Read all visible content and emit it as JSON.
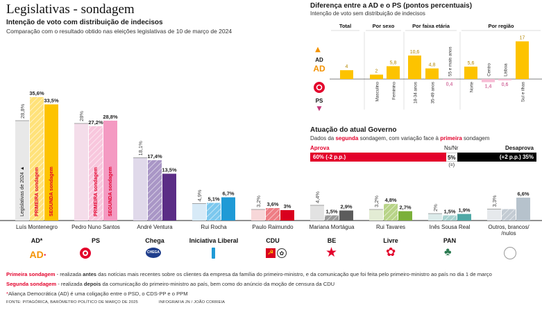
{
  "header": {
    "title": "Legislativas - sondagem",
    "subtitle": "Intenção de voto com distribuição de indecisos",
    "caption": "Comparação com o resultado obtido nas eleições legislativas de 10 de março de 2024"
  },
  "chart_data": [
    {
      "type": "bar",
      "title": "Intenção de voto com distribuição de indecisos",
      "series_names": [
        "Legislativas de 2024",
        "PRIMEIRA sondagem",
        "SEGUNDA sondagem"
      ],
      "categories": [
        "AD",
        "PS",
        "Chega",
        "Iniciativa Liberal",
        "CDU",
        "BE",
        "Livre",
        "PAN",
        "Outros"
      ],
      "series": [
        {
          "name": "Legislativas de 2024",
          "values": [
            28.8,
            28,
            18.1,
            4.9,
            3.2,
            4.4,
            3.2,
            2,
            3.3
          ],
          "labels": [
            "28,8%",
            "28%",
            "18,1%",
            "4,9%",
            "3,2%",
            "4,4%",
            "3,2%",
            "2%",
            "3,3%"
          ]
        },
        {
          "name": "PRIMEIRA sondagem",
          "values": [
            35.6,
            27.2,
            17.4,
            5.1,
            3.6,
            1.5,
            4.8,
            1.5,
            3.3
          ],
          "labels": [
            "35,6%",
            "27,2%",
            "17,4%",
            "5,1%",
            "3,6%",
            "1,5%",
            "4,8%",
            "1,5%",
            ""
          ]
        },
        {
          "name": "SEGUNDA sondagem",
          "values": [
            33.5,
            28.8,
            13.5,
            6.7,
            3,
            2.9,
            2.7,
            1.9,
            6.6
          ],
          "labels": [
            "33,5%",
            "28,8%",
            "13,5%",
            "6,7%",
            "3%",
            "2,9%",
            "2,7%",
            "1,9%",
            "6,6%"
          ]
        }
      ],
      "bar_labels_inside": {
        "ad_2024": "Legislativas de 2024 ▲",
        "ad_first": "PRIMEIRA sondagem",
        "ad_second": "SEGUNDA sondagem",
        "ps_first": "PRIMEIRA sondagem",
        "ps_second": "SEGUNDA sondagem",
        "ps_2024": "Legislativas de 2024"
      },
      "colors": [
        {
          "legislativas": "#e8e8e8",
          "first": "#ffe27a",
          "second": "#fdc300"
        },
        {
          "legislativas": "#f4ddea",
          "first": "#f8c7dd",
          "second": "#f49ac2"
        },
        {
          "legislativas": "#e0d9ea",
          "first": "#a996c6",
          "second": "#5b2d86"
        },
        {
          "legislativas": "#d7eaf7",
          "first": "#7cc8ee",
          "second": "#1f9ad6"
        },
        {
          "legislativas": "#f7d7d9",
          "first": "#ee7d84",
          "second": "#d9001e"
        },
        {
          "legislativas": "#e2e2e2",
          "first": "#9a9a9a",
          "second": "#5c5c5c"
        },
        {
          "legislativas": "#e3ecd4",
          "first": "#b8d488",
          "second": "#7bb03a"
        },
        {
          "legislativas": "#dcebea",
          "first": "#a8d2d0",
          "second": "#4fa8a5"
        },
        {
          "legislativas": "#e6e9ec",
          "first": "#c3cbd3",
          "second": "#b6c2cc"
        }
      ]
    },
    {
      "type": "bar",
      "title": "Diferença entre a AD e o PS (pontos percentuais)",
      "subtitle": "Intenção de voto sem distribuição de indecisos",
      "groups": [
        "Total",
        "Por sexo",
        "Por faixa etária",
        "Por região"
      ],
      "categories": [
        "Total",
        "Masculino",
        "Feminino",
        "18-34 anos",
        "35-49 anos",
        "55 e mais anos",
        "Norte",
        "Centro",
        "Lisboa",
        "Sul e ilhas"
      ],
      "values": [
        4,
        2,
        5.8,
        10.6,
        4.8,
        -0.4,
        5.6,
        -1.4,
        -0.6,
        17
      ],
      "labels": [
        "4",
        "2",
        "5,8",
        "10,6",
        "4,8",
        "0,4",
        "5,6",
        "1,4",
        "0,6",
        "17"
      ],
      "ad_label": "AD",
      "ps_label": "PS",
      "colors": {
        "ad": "#fdc300",
        "ps": "#f7bcd5",
        "ps_text": "#c2367a"
      }
    },
    {
      "type": "bar",
      "title": "Atuação do atual Governo",
      "subtitle_parts": [
        "Dados da ",
        "segunda",
        " sondagem, com variação face à ",
        "primeira",
        " sondagem"
      ],
      "categories": [
        "Aprova",
        "Ns/Nr",
        "Desaprova"
      ],
      "values": [
        60,
        5,
        35
      ],
      "labels": [
        "60%",
        "5%",
        "35%"
      ],
      "changes": [
        "(-2 p.p.)",
        "(=)",
        "(+2 p.p.)"
      ],
      "colors": {
        "aprova": "#e3002b",
        "nsnr": "#ffffff",
        "desaprova": "#000000"
      }
    }
  ],
  "candidates": [
    {
      "name": "Luís Montenegro",
      "party": "AD*"
    },
    {
      "name": "Pedro Nuno Santos",
      "party": "PS"
    },
    {
      "name": "André Ventura",
      "party": "Chega"
    },
    {
      "name": "Rui Rocha",
      "party": "Iniciativa Liberal"
    },
    {
      "name": "Paulo Raimundo",
      "party": "CDU"
    },
    {
      "name": "Mariana Mortágua",
      "party": "BE"
    },
    {
      "name": "Rui Tavares",
      "party": "Livre"
    },
    {
      "name": "Inês Sousa Real",
      "party": "PAN"
    },
    {
      "name": "Outros, brancos/ /nulos",
      "party": ""
    }
  ],
  "logos": {
    "ad": "AD",
    "chega": "CHEGA"
  },
  "notes": {
    "first_label": "Primeira sondagem",
    "first_text_a": " - realizada ",
    "first_bold": "antes",
    "first_text_b": " das notícias mais recentes sobre os clientes da empresa da família do primeiro-ministro, e da comunicação que foi feita pelo primeiro-ministro ao país no dia 1 de março",
    "second_label": "Segunda sondagem",
    "second_text_a": " - realizada ",
    "second_bold": "depois",
    "second_text_b": " da comunicação do primeiro-ministro ao país, bem como do anúncio da moção de censura da CDU",
    "asterisk_star": "*",
    "asterisk": "Aliança Democrática (AD) é uma coligação entre o PSD, o CDS-PP e o PPM",
    "source": "FONTE: PITAGÓRICA, BARÓMETRO POLÍTICO DE MARÇO DE 2025",
    "credit": "INFOGRAFIA JN / JOÃO CORREIA"
  }
}
